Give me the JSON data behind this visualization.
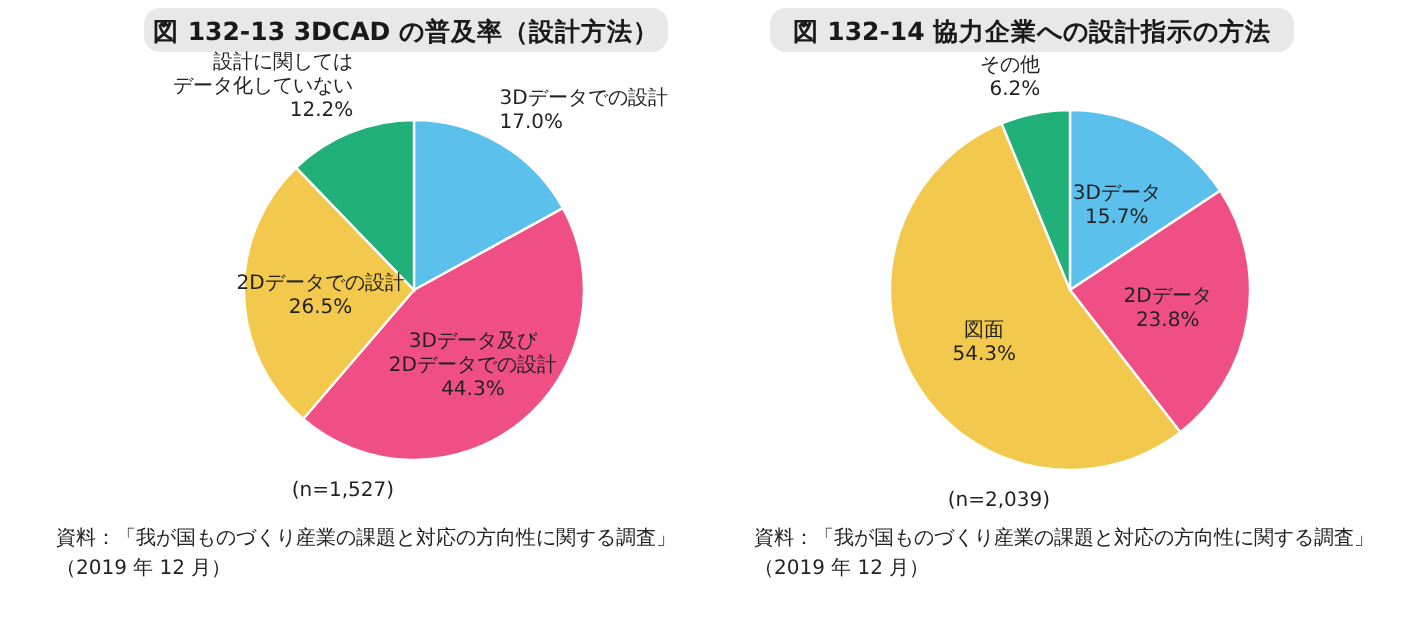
{
  "chart_data": [
    {
      "type": "pie",
      "title": "図 132-13  3DCAD の普及率（設計方法）",
      "categories": [
        "3Dデータでの設計",
        "3Dデータ及び2Dデータでの設計",
        "2Dデータでの設計",
        "設計に関してはデータ化していない"
      ],
      "values": [
        17.0,
        44.3,
        26.5,
        12.2
      ],
      "value_labels": [
        "17.0%",
        "44.3%",
        "26.5%",
        "12.2%"
      ],
      "colors": [
        "#5bc0eb",
        "#ef4f84",
        "#f2c94c",
        "#22b07a"
      ],
      "annotations": [
        "(n=1,527)",
        "資料：「我が国ものづくり産業の課題と対応の方向性に関する調査」（2019 年 12 月）"
      ]
    },
    {
      "type": "pie",
      "title": "図 132-14  協力企業への設計指示の方法",
      "categories": [
        "3Dデータ",
        "2Dデータ",
        "図面",
        "その他"
      ],
      "values": [
        15.7,
        23.8,
        54.3,
        6.2
      ],
      "value_labels": [
        "15.7%",
        "23.8%",
        "54.3%",
        "6.2%"
      ],
      "colors": [
        "#5bc0eb",
        "#ef4f84",
        "#f2c94c",
        "#22b07a"
      ],
      "annotations": [
        "(n=2,039)",
        "資料：「我が国ものづくり産業の課題と対応の方向性に関する調査」（2019 年 12 月）"
      ]
    }
  ]
}
